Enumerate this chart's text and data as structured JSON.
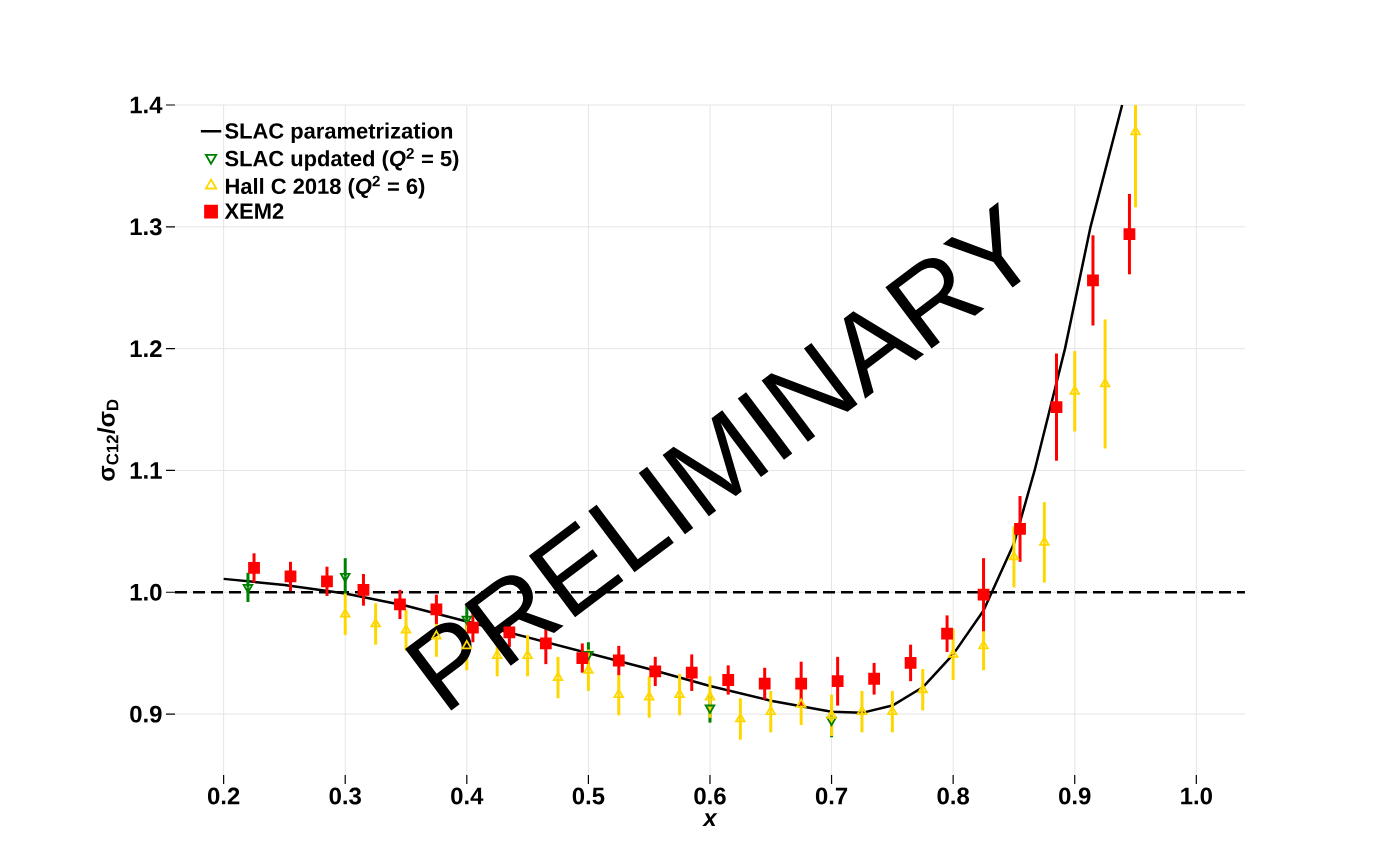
{
  "chart_data": {
    "type": "scatter",
    "xlabel": "x",
    "ylabel": "σ$_{C12}$/σ$_{D}$",
    "xlim": [
      0.16,
      1.04
    ],
    "ylim": [
      0.85,
      1.4
    ],
    "xticks": [
      0.2,
      0.3,
      0.4,
      0.5,
      0.6,
      0.7,
      0.8,
      0.9,
      {
        "value": 1,
        "label": "1.0"
      }
    ],
    "yticks": [
      0.9,
      {
        "value": 1,
        "label": "1.0"
      },
      1.1,
      1.2,
      1.3,
      1.4
    ],
    "grid": true,
    "legend": "top left",
    "ref_lines": [
      {
        "axis": "y",
        "value": 1,
        "color": "#000000",
        "line_style": "dashed"
      }
    ],
    "annotations": [
      "PRELIMINARY"
    ],
    "series": [
      {
        "name": "SLAC parametrization",
        "type": "line",
        "color": "#000000",
        "marker": "none",
        "x": [
          0.2,
          0.25,
          0.3,
          0.35,
          0.4,
          0.45,
          0.5,
          0.55,
          0.6,
          0.65,
          0.7,
          0.725,
          0.75,
          0.775,
          0.8,
          0.825,
          0.85,
          0.867,
          0.892,
          0.913,
          0.939
        ],
        "values": [
          1.011,
          1.006,
          0.999,
          0.989,
          0.976,
          0.963,
          0.95,
          0.937,
          0.923,
          0.911,
          0.902,
          0.901,
          0.907,
          0.922,
          0.949,
          0.985,
          1.04,
          1.1,
          1.2,
          1.3,
          1.4
        ]
      },
      {
        "name": "SLAC updated (*Q*$^{2}$ = 5)",
        "color": "#008000",
        "marker": "triangle_down",
        "x": [
          0.22,
          0.3,
          0.4,
          0.5,
          0.6,
          0.7
        ],
        "values": [
          1.004,
          1.013,
          0.978,
          0.949,
          0.905,
          0.895
        ],
        "errors": [
          0.012,
          0.015,
          0.012,
          0.01,
          0.012,
          0.014
        ]
      },
      {
        "name": "Hall C 2018 (*Q*$^{2}$ = 6)",
        "color": "#ffd700",
        "marker": "triangle",
        "x": [
          0.3,
          0.325,
          0.35,
          0.375,
          0.4,
          0.425,
          0.45,
          0.475,
          0.5,
          0.525,
          0.55,
          0.575,
          0.6,
          0.625,
          0.65,
          0.675,
          0.7,
          0.725,
          0.75,
          0.775,
          0.8,
          0.825,
          0.85,
          0.875,
          0.9,
          0.925,
          0.95
        ],
        "values": [
          0.982,
          0.974,
          0.969,
          0.964,
          0.956,
          0.948,
          0.948,
          0.93,
          0.936,
          0.916,
          0.914,
          0.916,
          0.914,
          0.896,
          0.902,
          0.908,
          0.899,
          0.902,
          0.902,
          0.92,
          0.949,
          0.956,
          1.029,
          1.041,
          1.165,
          1.171,
          1.378
        ],
        "errors": [
          0.017,
          0.017,
          0.017,
          0.017,
          0.02,
          0.017,
          0.017,
          0.017,
          0.017,
          0.017,
          0.017,
          0.017,
          0.017,
          0.017,
          0.017,
          0.017,
          0.017,
          0.017,
          0.017,
          0.017,
          0.021,
          0.02,
          0.025,
          0.033,
          0.033,
          0.053,
          [
            1.316,
            1.4
          ]
        ]
      },
      {
        "name": "XEM2",
        "color": "#ff0000",
        "marker": "square",
        "x": [
          0.225,
          0.255,
          0.285,
          0.315,
          0.345,
          0.375,
          0.405,
          0.435,
          0.465,
          0.495,
          0.525,
          0.555,
          0.585,
          0.615,
          0.645,
          0.675,
          0.705,
          0.735,
          0.765,
          0.795,
          0.825,
          0.855,
          0.885,
          0.915,
          0.945
        ],
        "values": [
          1.02,
          1.013,
          1.009,
          1.002,
          0.99,
          0.986,
          0.971,
          0.967,
          0.958,
          0.946,
          0.944,
          0.935,
          0.934,
          0.928,
          0.925,
          0.925,
          0.927,
          0.929,
          0.942,
          0.966,
          0.998,
          1.052,
          1.152,
          1.256,
          1.294
        ],
        "errors": [
          0.012,
          0.012,
          0.012,
          0.013,
          0.012,
          0.012,
          0.012,
          0.012,
          0.017,
          0.012,
          0.012,
          0.012,
          0.015,
          0.012,
          0.013,
          0.018,
          0.02,
          0.013,
          0.015,
          0.015,
          0.03,
          0.027,
          0.044,
          0.037,
          0.033
        ]
      }
    ]
  }
}
